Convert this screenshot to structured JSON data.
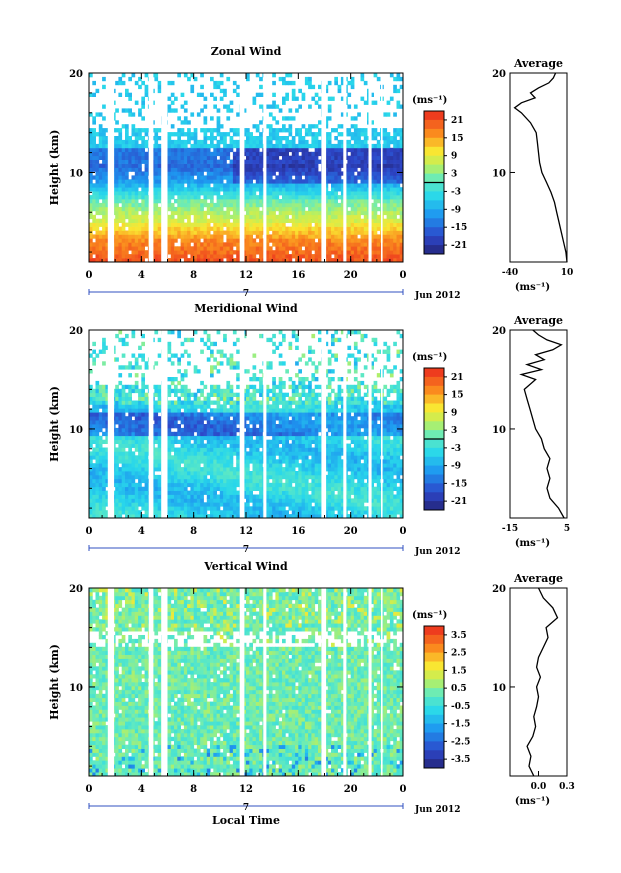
{
  "chart_data": [
    {
      "type": "heatmap",
      "title": "Zonal Wind",
      "ylabel": "Height (km)",
      "xlabel": "",
      "xlim": [
        0,
        24
      ],
      "ylim": [
        1,
        20
      ],
      "x_ticks": [
        "0",
        "4",
        "8",
        "12",
        "16",
        "20",
        "0"
      ],
      "y_ticks": [
        "10",
        "20"
      ],
      "date_marker": "7",
      "date_label": "Jun 2012",
      "colorbar": {
        "unit": "(ms⁻¹)",
        "ticks": [
          "21",
          "15",
          "9",
          "3",
          "-3",
          "-9",
          "-15",
          "-21"
        ],
        "range": [
          -24,
          24
        ],
        "zero_line": 0
      },
      "profile": {
        "title": "Average",
        "xlabel": "(ms⁻¹)",
        "x_ticks": [
          "-40",
          "10"
        ],
        "xlim": [
          -40,
          10
        ],
        "ylim": [
          1,
          20
        ],
        "y_ticks": [
          "10",
          "20"
        ],
        "points": [
          [
            10,
            1
          ],
          [
            9,
            2
          ],
          [
            7,
            3
          ],
          [
            5,
            4
          ],
          [
            3,
            5
          ],
          [
            1,
            6
          ],
          [
            -1,
            7
          ],
          [
            -4,
            8
          ],
          [
            -8,
            9
          ],
          [
            -12,
            10
          ],
          [
            -14,
            11
          ],
          [
            -15,
            12
          ],
          [
            -16,
            13
          ],
          [
            -17,
            14
          ],
          [
            -22,
            15
          ],
          [
            -30,
            16
          ],
          [
            -36,
            16.5
          ],
          [
            -30,
            17
          ],
          [
            -18,
            17.5
          ],
          [
            -22,
            18
          ],
          [
            -15,
            18.5
          ],
          [
            -6,
            19
          ],
          [
            -2,
            19.5
          ],
          [
            0,
            20
          ]
        ]
      }
    },
    {
      "type": "heatmap",
      "title": "Meridional Wind",
      "ylabel": "Height (km)",
      "xlabel": "",
      "xlim": [
        0,
        24
      ],
      "ylim": [
        1,
        20
      ],
      "x_ticks": [
        "0",
        "4",
        "8",
        "12",
        "16",
        "20",
        "0"
      ],
      "y_ticks": [
        "10",
        "20"
      ],
      "date_marker": "7",
      "date_label": "Jun 2012",
      "colorbar": {
        "unit": "(ms⁻¹)",
        "ticks": [
          "21",
          "15",
          "9",
          "3",
          "-3",
          "-9",
          "-15",
          "-21"
        ],
        "range": [
          -24,
          24
        ],
        "zero_line": 0
      },
      "profile": {
        "title": "Average",
        "xlabel": "(ms⁻¹)",
        "x_ticks": [
          "-15",
          "5"
        ],
        "xlim": [
          -15,
          5
        ],
        "ylim": [
          1,
          20
        ],
        "y_ticks": [
          "10",
          "20"
        ],
        "points": [
          [
            4,
            1
          ],
          [
            2,
            2
          ],
          [
            -1,
            3
          ],
          [
            -2,
            4
          ],
          [
            -1,
            5
          ],
          [
            -2,
            6
          ],
          [
            -1,
            7
          ],
          [
            -3,
            8
          ],
          [
            -4,
            9
          ],
          [
            -6,
            10
          ],
          [
            -7,
            11
          ],
          [
            -8,
            12
          ],
          [
            -9,
            13
          ],
          [
            -10,
            14
          ],
          [
            -6,
            15
          ],
          [
            -11,
            15.5
          ],
          [
            -4,
            16
          ],
          [
            -9,
            16.5
          ],
          [
            -3,
            17
          ],
          [
            -6,
            17.5
          ],
          [
            0,
            18
          ],
          [
            3,
            18.5
          ],
          [
            -2,
            19
          ],
          [
            -5,
            19.5
          ],
          [
            -7,
            20
          ]
        ]
      }
    },
    {
      "type": "heatmap",
      "title": "Vertical Wind",
      "ylabel": "Height (km)",
      "xlabel": "Local Time",
      "xlim": [
        0,
        24
      ],
      "ylim": [
        1,
        20
      ],
      "x_ticks": [
        "0",
        "4",
        "8",
        "12",
        "16",
        "20",
        "0"
      ],
      "y_ticks": [
        "10",
        "20"
      ],
      "date_marker": "7",
      "date_label": "Jun 2012",
      "colorbar": {
        "unit": "(ms⁻¹)",
        "ticks": [
          "3.5",
          "2.5",
          "1.5",
          "0.5",
          "-0.5",
          "-1.5",
          "-2.5",
          "-3.5"
        ],
        "range": [
          -4,
          4
        ]
      },
      "profile": {
        "title": "Average",
        "xlabel": "(ms⁻¹)",
        "x_ticks": [
          "0.0",
          "0.3"
        ],
        "xlim": [
          -0.3,
          0.3
        ],
        "ylim": [
          1,
          20
        ],
        "y_ticks": [
          "10",
          "20"
        ],
        "points": [
          [
            -0.05,
            1
          ],
          [
            -0.1,
            2
          ],
          [
            -0.08,
            3
          ],
          [
            -0.12,
            4
          ],
          [
            -0.06,
            5
          ],
          [
            -0.03,
            6
          ],
          [
            -0.05,
            7
          ],
          [
            -0.02,
            8
          ],
          [
            0.0,
            9
          ],
          [
            -0.02,
            10
          ],
          [
            0.02,
            11
          ],
          [
            -0.02,
            12
          ],
          [
            0.0,
            13
          ],
          [
            0.05,
            14
          ],
          [
            0.1,
            15
          ],
          [
            0.08,
            16
          ],
          [
            0.2,
            17
          ],
          [
            0.15,
            18
          ],
          [
            0.05,
            19
          ],
          [
            0.0,
            20
          ]
        ]
      }
    }
  ]
}
